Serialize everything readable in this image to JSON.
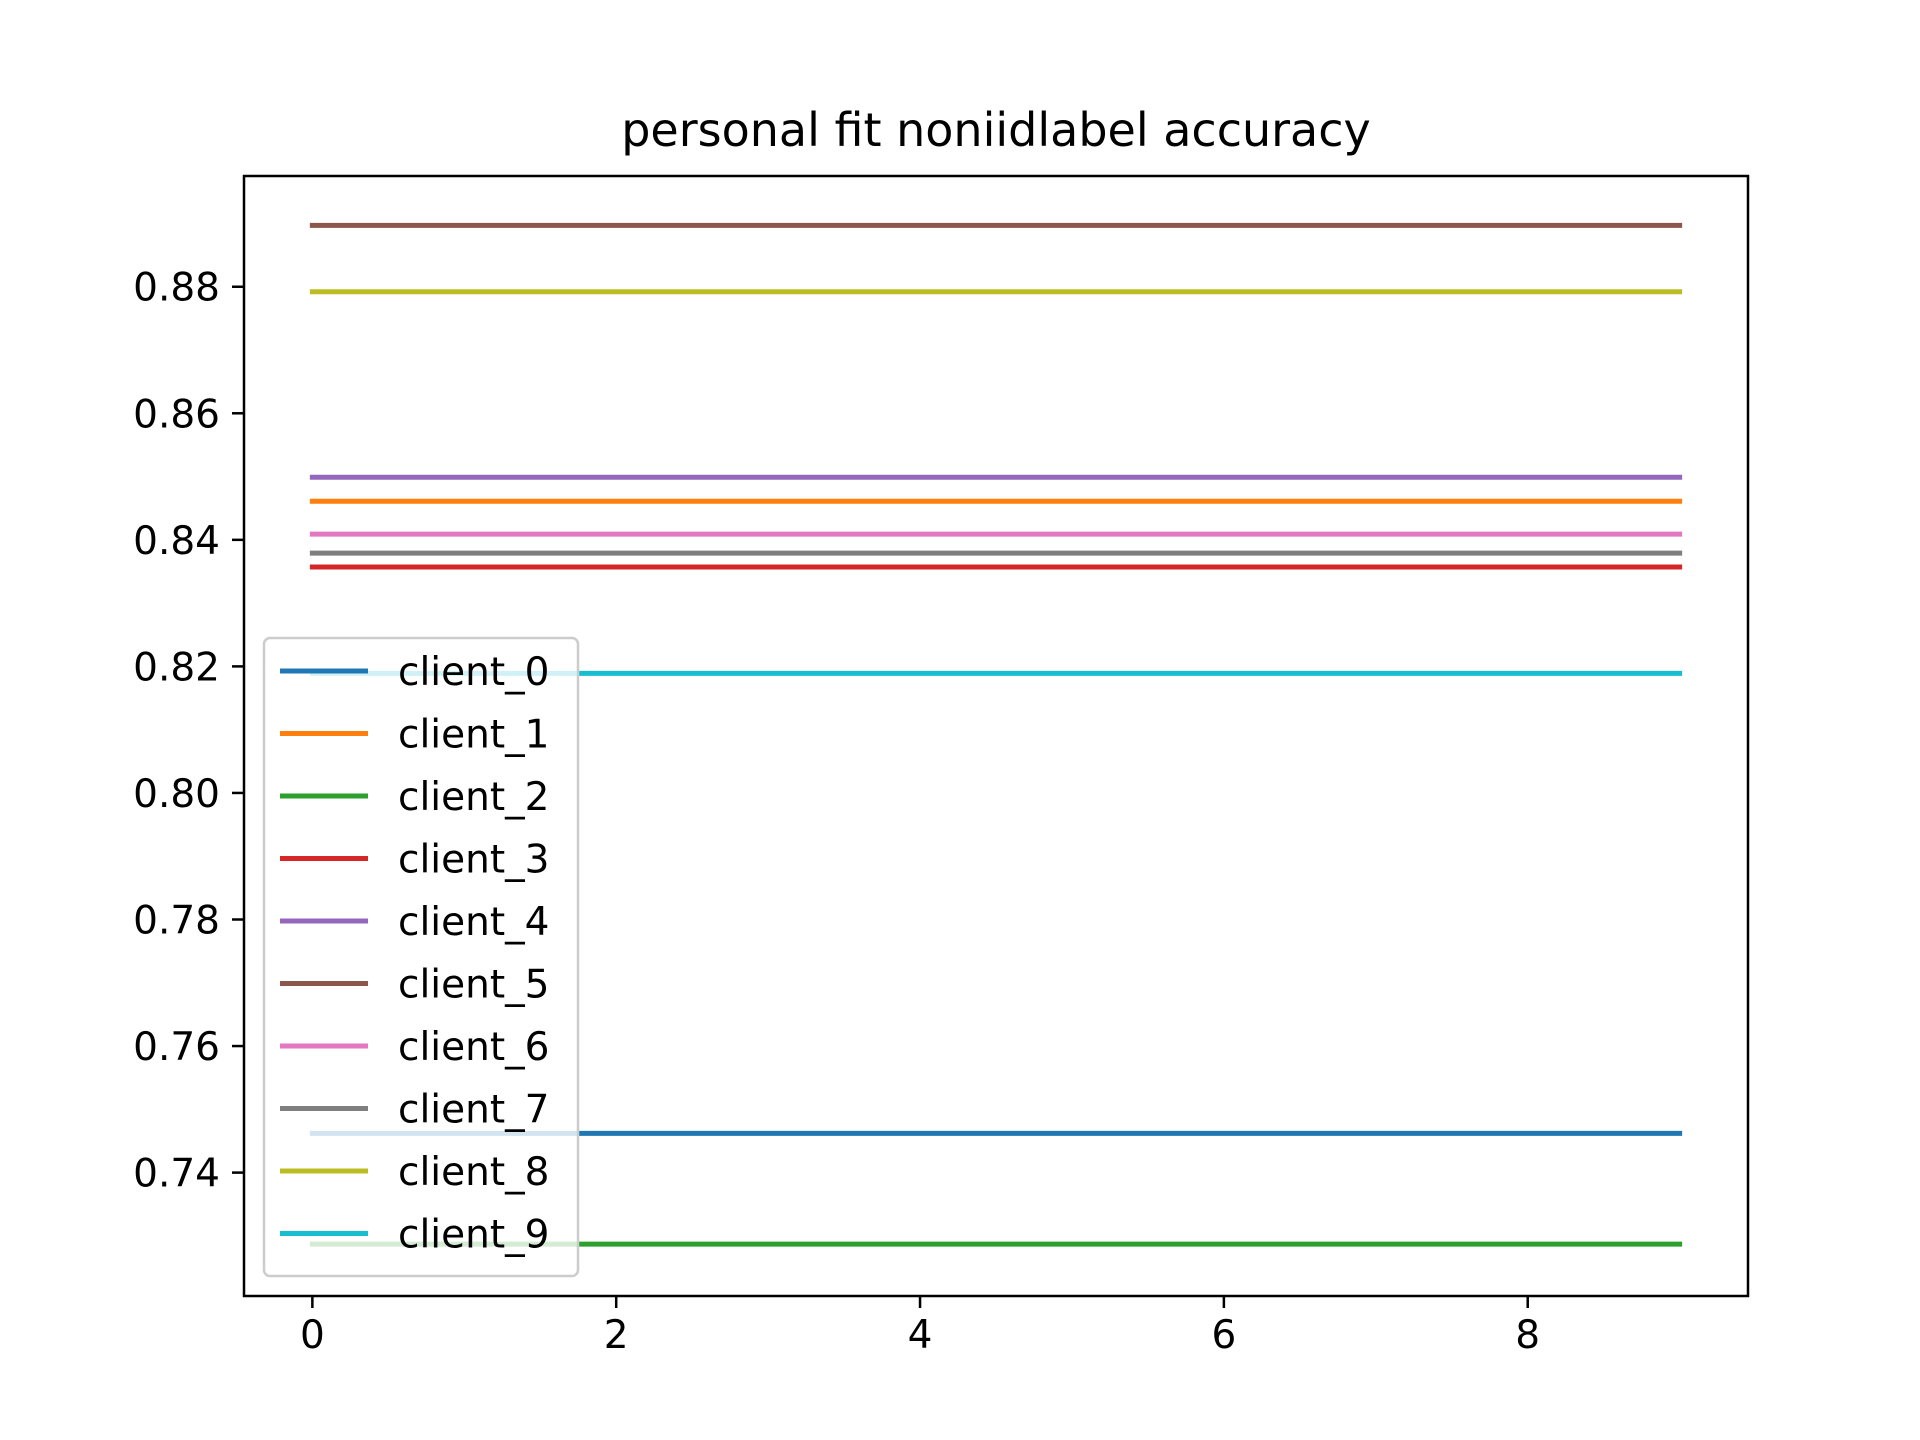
{
  "chart_data": {
    "type": "line",
    "title": "personal fit noniidlabel accuracy",
    "xlabel": "",
    "ylabel": "",
    "xlim": [
      -0.45,
      9.45
    ],
    "ylim": [
      0.7205,
      0.8975
    ],
    "x_ticks": [
      0,
      2,
      4,
      6,
      8
    ],
    "x_tick_labels": [
      "0",
      "2",
      "4",
      "6",
      "8"
    ],
    "y_ticks": [
      0.74,
      0.76,
      0.78,
      0.8,
      0.82,
      0.84,
      0.86,
      0.88
    ],
    "y_tick_labels": [
      "0.74",
      "0.76",
      "0.78",
      "0.80",
      "0.82",
      "0.84",
      "0.86",
      "0.88"
    ],
    "grid": false,
    "legend_position": "lower-left",
    "x": [
      0,
      1,
      2,
      3,
      4,
      5,
      6,
      7,
      8,
      9
    ],
    "series": [
      {
        "name": "client_0",
        "color": "#1f77b4",
        "values": [
          0.7462,
          0.7462,
          0.7462,
          0.7462,
          0.7462,
          0.7462,
          0.7462,
          0.7462,
          0.7462,
          0.7462
        ]
      },
      {
        "name": "client_1",
        "color": "#ff7f0e",
        "values": [
          0.8461,
          0.8461,
          0.8461,
          0.8461,
          0.8461,
          0.8461,
          0.8461,
          0.8461,
          0.8461,
          0.8461
        ]
      },
      {
        "name": "client_2",
        "color": "#2ca02c",
        "values": [
          0.7287,
          0.7287,
          0.7287,
          0.7287,
          0.7287,
          0.7287,
          0.7287,
          0.7287,
          0.7287,
          0.7287
        ]
      },
      {
        "name": "client_3",
        "color": "#d62728",
        "values": [
          0.8357,
          0.8357,
          0.8357,
          0.8357,
          0.8357,
          0.8357,
          0.8357,
          0.8357,
          0.8357,
          0.8357
        ]
      },
      {
        "name": "client_4",
        "color": "#9467bd",
        "values": [
          0.8499,
          0.8499,
          0.8499,
          0.8499,
          0.8499,
          0.8499,
          0.8499,
          0.8499,
          0.8499,
          0.8499
        ]
      },
      {
        "name": "client_5",
        "color": "#8c564b",
        "values": [
          0.8897,
          0.8897,
          0.8897,
          0.8897,
          0.8897,
          0.8897,
          0.8897,
          0.8897,
          0.8897,
          0.8897
        ]
      },
      {
        "name": "client_6",
        "color": "#e377c2",
        "values": [
          0.8409,
          0.8409,
          0.8409,
          0.8409,
          0.8409,
          0.8409,
          0.8409,
          0.8409,
          0.8409,
          0.8409
        ]
      },
      {
        "name": "client_7",
        "color": "#7f7f7f",
        "values": [
          0.8379,
          0.8379,
          0.8379,
          0.8379,
          0.8379,
          0.8379,
          0.8379,
          0.8379,
          0.8379,
          0.8379
        ]
      },
      {
        "name": "client_8",
        "color": "#bcbd22",
        "values": [
          0.8792,
          0.8792,
          0.8792,
          0.8792,
          0.8792,
          0.8792,
          0.8792,
          0.8792,
          0.8792,
          0.8792
        ]
      },
      {
        "name": "client_9",
        "color": "#17becf",
        "values": [
          0.8189,
          0.8189,
          0.8189,
          0.8189,
          0.8189,
          0.8189,
          0.8189,
          0.8189,
          0.8189,
          0.8189
        ]
      }
    ]
  }
}
